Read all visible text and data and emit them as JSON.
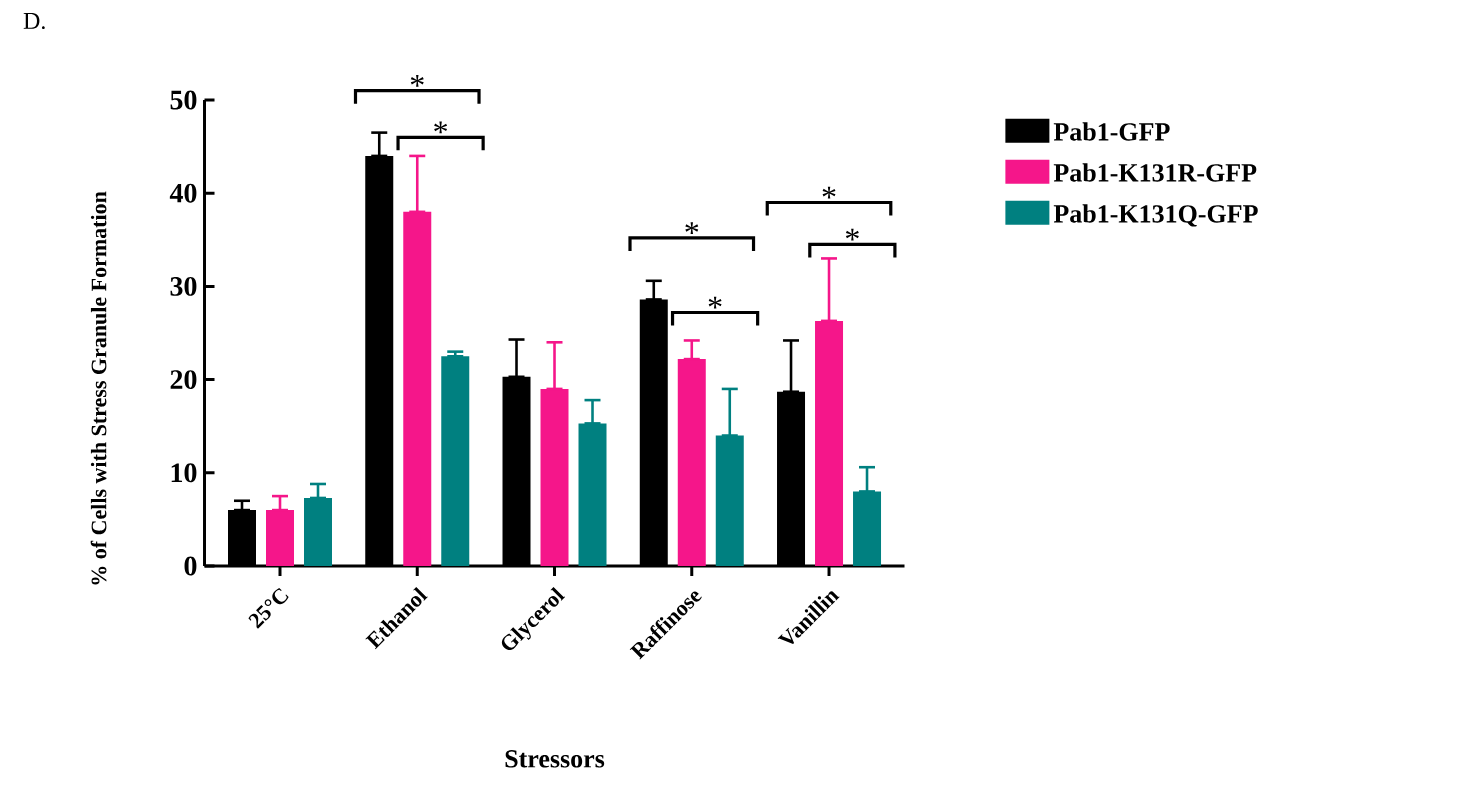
{
  "chart_data": {
    "type": "bar",
    "xlabel": "Stressors",
    "ylabel": "% of Cells with Stress Granule Formation",
    "categories": [
      "25°C",
      "Ethanol",
      "Glycerol",
      "Raffinose",
      "Vanillin"
    ],
    "series": [
      {
        "name": "Pab1-GFP",
        "color": "#000000",
        "values": [
          6,
          44,
          20.3,
          28.6,
          18.7
        ],
        "errors": [
          [
            6,
            7
          ],
          [
            44,
            46.5
          ],
          [
            20.3,
            24.3
          ],
          [
            28.6,
            30.6
          ],
          [
            18.7,
            24.2
          ]
        ]
      },
      {
        "name": "Pab1-K131R-GFP",
        "color": "#f5168a",
        "values": [
          6,
          38,
          19,
          22.2,
          26.3
        ],
        "errors": [
          [
            6,
            7.5
          ],
          [
            38,
            44
          ],
          [
            19,
            24
          ],
          [
            22.2,
            24.2
          ],
          [
            26.3,
            33
          ]
        ]
      },
      {
        "name": "Pab1-K131Q-GFP",
        "color": "#008080",
        "values": [
          7.3,
          22.5,
          15.3,
          14,
          8
        ],
        "errors": [
          [
            7.3,
            8.8
          ],
          [
            22.5,
            23
          ],
          [
            15.3,
            17.8
          ],
          [
            14,
            19
          ],
          [
            8,
            10.6
          ]
        ]
      }
    ],
    "ylim": [
      0,
      50
    ],
    "yticks": [
      0,
      10,
      20,
      30,
      40,
      50
    ],
    "legend": "right",
    "annotations": [
      "D.",
      "*",
      "*",
      "*",
      "*",
      "*",
      "*"
    ]
  }
}
